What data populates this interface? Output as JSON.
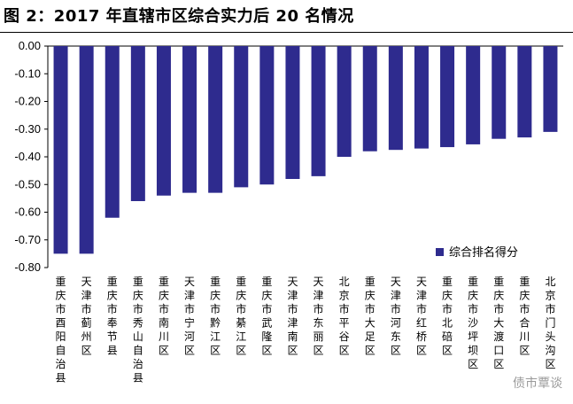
{
  "page": {
    "title": "图 2：2017 年直辖市区综合实力后 20 名情况",
    "watermark": "债市覃谈"
  },
  "chart_data": {
    "type": "bar",
    "title": "",
    "xlabel": "",
    "ylabel": "",
    "ylim": [
      -0.8,
      0.0
    ],
    "yticks": [
      "0.00",
      "-0.10",
      "-0.20",
      "-0.30",
      "-0.40",
      "-0.50",
      "-0.60",
      "-0.70",
      "-0.80"
    ],
    "categories": [
      "重庆市酉阳自治县",
      "天津市蓟州区",
      "重庆市奉节县",
      "重庆市秀山自治县",
      "重庆市南川区",
      "天津市宁河区",
      "重庆市黔江区",
      "重庆市綦江区",
      "重庆市武隆区",
      "天津市津南区",
      "天津市东丽区",
      "北京市平谷区",
      "重庆市大足区",
      "天津市河东区",
      "天津市红桥区",
      "重庆市北碚区",
      "重庆市沙坪坝区",
      "重庆市大渡口区",
      "重庆市合川区",
      "北京市门头沟区"
    ],
    "series": [
      {
        "name": "综合排名得分",
        "values": [
          -0.75,
          -0.75,
          -0.62,
          -0.56,
          -0.54,
          -0.53,
          -0.53,
          -0.51,
          -0.5,
          -0.48,
          -0.47,
          -0.4,
          -0.38,
          -0.375,
          -0.37,
          -0.365,
          -0.355,
          -0.335,
          -0.33,
          -0.31
        ]
      }
    ],
    "legend_position": "bottom-right",
    "bar_color": "#2e2b8e",
    "grid": false
  }
}
